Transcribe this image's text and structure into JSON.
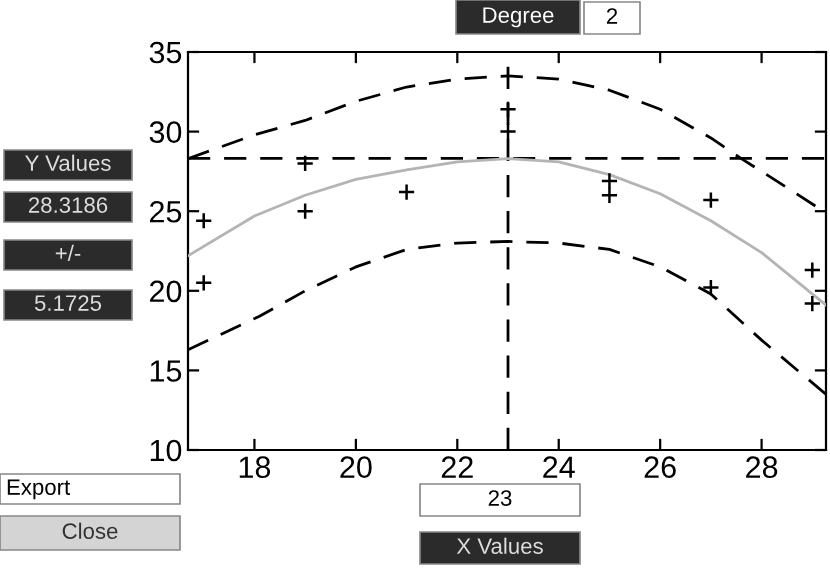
{
  "chart_data": {
    "type": "scatter",
    "series": [
      {
        "color": "#000000",
        "marker": "cross",
        "x": [
          17,
          17,
          19,
          19,
          21,
          23,
          23,
          25,
          25,
          27,
          27,
          29,
          29
        ],
        "values": [
          24.4,
          20.5,
          28.0,
          25.0,
          26.2,
          31.4,
          30.0,
          26.9,
          26.0,
          25.7,
          20.2,
          21.3,
          19.2
        ]
      },
      {
        "type": "line",
        "color": "#b4b4b4",
        "line_style": "solid",
        "x": [
          16.69,
          18,
          19,
          20,
          21,
          22,
          23,
          24,
          25,
          26,
          27,
          28,
          29.27
        ],
        "values": [
          22.2,
          24.7,
          26.0,
          27.0,
          27.6,
          28.1,
          28.3,
          28.1,
          27.3,
          26.1,
          24.4,
          22.4,
          19.1
        ]
      },
      {
        "type": "line",
        "color": "#000000",
        "line_style": "dashed",
        "x": [
          16.69,
          18,
          19,
          20,
          21,
          22,
          23,
          24,
          25,
          26,
          27,
          27.6,
          28,
          29.27
        ],
        "values": [
          28.3,
          29.8,
          30.7,
          31.9,
          32.8,
          33.3,
          33.5,
          33.3,
          32.6,
          31.4,
          29.6,
          28.3,
          27.5,
          24.9
        ]
      },
      {
        "type": "line",
        "color": "#000000",
        "line_style": "dashed",
        "x": [
          16.69,
          18.1,
          19,
          20,
          21,
          22,
          23,
          24,
          25,
          26,
          27,
          28,
          29.27
        ],
        "values": [
          16.3,
          18.4,
          20.0,
          21.5,
          22.6,
          23.0,
          23.1,
          23.0,
          22.6,
          21.5,
          19.8,
          16.9,
          13.5
        ]
      }
    ],
    "xlim": [
      16.69,
      29.27
    ],
    "xticks": [
      18,
      20,
      22,
      24,
      26,
      28
    ],
    "ylim": [
      10,
      35
    ],
    "yticks": [
      10,
      15,
      20,
      25,
      30,
      35
    ],
    "grid": false,
    "legend": false,
    "ref_lines": [
      {
        "axis": "y",
        "value": 28.3186,
        "color": "#000000",
        "line_style": "dashed"
      },
      {
        "axis": "x",
        "value": 23,
        "color": "#000000",
        "line_style": "dashed"
      }
    ],
    "annotations": [
      "Degree",
      "2",
      "Y Values",
      "28.3186",
      "+/-",
      "5.1725",
      "Export",
      "Close",
      "23",
      "X Values"
    ]
  }
}
